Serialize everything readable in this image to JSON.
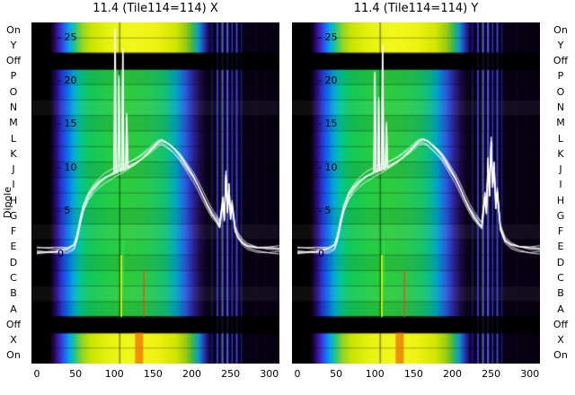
{
  "figure": {
    "bg": "#ffffff"
  },
  "panels": [
    {
      "title": "11.4 (Tile114=114) X"
    },
    {
      "title": "11.4 (Tile114=114) Y"
    }
  ],
  "axis": {
    "dipole_label": "Dipole",
    "row_labels": [
      "On",
      "Y",
      "Off",
      "P",
      "O",
      "N",
      "M",
      "L",
      "K",
      "J",
      "I",
      "H",
      "G",
      "F",
      "E",
      "D",
      "C",
      "B",
      "A",
      "Off",
      "X",
      "On"
    ],
    "x_tick_labels": [
      "0",
      "50",
      "100",
      "150",
      "200",
      "250",
      "300"
    ],
    "x_tick_values": [
      0,
      50,
      100,
      150,
      200,
      250,
      300
    ],
    "inner_left_tick_labels": [
      "- 25",
      "- 20",
      "- 15",
      "- 10",
      "- 5",
      "0"
    ],
    "inner_left_tick_values": [
      25,
      20,
      15,
      10,
      5,
      0
    ],
    "inner_right_tick_labels": [
      "25",
      "20",
      "15",
      "10",
      "5"
    ],
    "inner_right_tick_values": [
      25,
      20,
      15,
      10,
      5
    ]
  },
  "chart_data": {
    "type": "heatmap",
    "description": "Two-panel per-dipole spectrum waterfall (jet colormap) with overlaid white bandpass power curves; one panel per polarization X and Y",
    "x_range": [
      0,
      320
    ],
    "x_ticks": [
      0,
      50,
      100,
      150,
      200,
      250,
      300
    ],
    "inner_y_range": [
      0,
      26
    ],
    "inner_y_ticks": [
      0,
      5,
      10,
      15,
      20,
      25
    ],
    "row_labels": [
      "On",
      "Y",
      "Off",
      "P",
      "O",
      "N",
      "M",
      "L",
      "K",
      "J",
      "I",
      "H",
      "G",
      "F",
      "E",
      "D",
      "C",
      "B",
      "A",
      "Off",
      "X",
      "On"
    ],
    "row_kinds": [
      "bright",
      "bright",
      "off",
      "main",
      "main",
      "main",
      "main",
      "main",
      "main",
      "main",
      "main",
      "main",
      "main",
      "main",
      "main",
      "main",
      "main",
      "main",
      "main",
      "off",
      "bright",
      "bright"
    ],
    "colormaps": {
      "main": [
        [
          0,
          "#000000"
        ],
        [
          16,
          "#000000"
        ],
        [
          21,
          "#1a0533"
        ],
        [
          26,
          "#2c0e88"
        ],
        [
          32,
          "#2438d8"
        ],
        [
          39,
          "#0f6ae8"
        ],
        [
          47,
          "#00a8dc"
        ],
        [
          56,
          "#00c796"
        ],
        [
          66,
          "#12c75e"
        ],
        [
          90,
          "#22cc46"
        ],
        [
          120,
          "#2ecc3e"
        ],
        [
          150,
          "#24c854"
        ],
        [
          168,
          "#0fc07e"
        ],
        [
          180,
          "#00a6c8"
        ],
        [
          192,
          "#2b5ae0"
        ],
        [
          202,
          "#2c2398"
        ],
        [
          211,
          "#1c0b48"
        ],
        [
          219,
          "#0c0318"
        ],
        [
          240,
          "#070112"
        ],
        [
          258,
          "#0c0220"
        ],
        [
          270,
          "#090114"
        ],
        [
          320,
          "#070010"
        ]
      ],
      "bright": [
        [
          0,
          "#000000"
        ],
        [
          16,
          "#000000"
        ],
        [
          21,
          "#1c0536"
        ],
        [
          27,
          "#3a16aa"
        ],
        [
          34,
          "#2a52e8"
        ],
        [
          42,
          "#00a8f0"
        ],
        [
          50,
          "#2cc878"
        ],
        [
          58,
          "#8ed426"
        ],
        [
          70,
          "#cce400"
        ],
        [
          95,
          "#e8f410"
        ],
        [
          125,
          "#f2f81c"
        ],
        [
          155,
          "#eef312"
        ],
        [
          178,
          "#d4e600"
        ],
        [
          192,
          "#9ccc10"
        ],
        [
          201,
          "#3cb84a"
        ],
        [
          209,
          "#0b98cc"
        ],
        [
          216,
          "#2b35b0"
        ],
        [
          223,
          "#140442"
        ],
        [
          231,
          "#08021a"
        ],
        [
          320,
          "#070010"
        ]
      ]
    },
    "stripes": [
      {
        "x": 107,
        "w": 1.5,
        "color": "#000000",
        "alpha": 0.45
      },
      {
        "x": 226,
        "w": 1.2,
        "color": "#2233cc",
        "alpha": 0.55
      },
      {
        "x": 233,
        "w": 2.0,
        "color": "#3b44ee",
        "alpha": 0.85
      },
      {
        "x": 239,
        "w": 1.2,
        "color": "#e8e8ff",
        "alpha": 0.5
      },
      {
        "x": 240,
        "w": 1.5,
        "color": "#4c55ff",
        "alpha": 0.9
      },
      {
        "x": 246,
        "w": 2.2,
        "color": "#5560ff",
        "alpha": 0.9
      },
      {
        "x": 252,
        "w": 1.5,
        "color": "#3b44e0",
        "alpha": 0.85
      },
      {
        "x": 258,
        "w": 2.0,
        "color": "#4750f0",
        "alpha": 0.85
      },
      {
        "x": 264,
        "w": 1.2,
        "color": "#2a33bb",
        "alpha": 0.7
      },
      {
        "x": 283,
        "w": 1.0,
        "color": "#1a1140",
        "alpha": 0.5
      },
      {
        "x": 295,
        "w": 1.0,
        "color": "#140d33",
        "alpha": 0.4
      }
    ],
    "features": [
      {
        "x": 109,
        "w": 2.0,
        "color": "#d4f000",
        "row_start": 15,
        "row_end": 19,
        "alpha": 0.95
      },
      {
        "x": 111.5,
        "w": 1.0,
        "color": "#33ee55",
        "row_start": 14,
        "row_end": 17,
        "alpha": 0.9
      },
      {
        "x": 138,
        "w": 1.5,
        "color": "#ff4400",
        "row_start": 16,
        "row_end": 19,
        "alpha": 0.9
      },
      {
        "x": 132,
        "w": 9.0,
        "color": "#ee6600",
        "row_start": 20,
        "row_end": 22,
        "alpha": 0.7
      }
    ],
    "panels": [
      {
        "name": "X",
        "title": "11.4 (Tile114=114) X",
        "line_base": [
          [
            0,
            0.4
          ],
          [
            24,
            0.4
          ],
          [
            40,
            0.5
          ],
          [
            48,
            0.9
          ],
          [
            52,
            2.0
          ],
          [
            56,
            3.8
          ],
          [
            60,
            5.3
          ],
          [
            66,
            6.6
          ],
          [
            72,
            7.4
          ],
          [
            80,
            8.2
          ],
          [
            88,
            8.8
          ],
          [
            96,
            9.2
          ],
          [
            104,
            9.6
          ],
          [
            112,
            9.9
          ],
          [
            120,
            10.3
          ],
          [
            128,
            10.7
          ],
          [
            136,
            11.2
          ],
          [
            144,
            11.8
          ],
          [
            150,
            12.3
          ],
          [
            156,
            12.8
          ],
          [
            161,
            13.0
          ],
          [
            166,
            12.8
          ],
          [
            172,
            12.4
          ],
          [
            178,
            11.9
          ],
          [
            184,
            11.3
          ],
          [
            190,
            10.5
          ],
          [
            196,
            9.7
          ],
          [
            202,
            8.9
          ],
          [
            208,
            7.9
          ],
          [
            214,
            6.8
          ],
          [
            220,
            5.7
          ],
          [
            226,
            4.7
          ],
          [
            232,
            4.0
          ],
          [
            236,
            3.4
          ],
          [
            240,
            6.2
          ],
          [
            242,
            4.1
          ],
          [
            244,
            9.3
          ],
          [
            246,
            5.0
          ],
          [
            248,
            7.8
          ],
          [
            250,
            4.2
          ],
          [
            252,
            5.8
          ],
          [
            256,
            2.8
          ],
          [
            260,
            2.0
          ],
          [
            266,
            1.3
          ],
          [
            272,
            0.9
          ],
          [
            284,
            0.6
          ],
          [
            300,
            0.5
          ],
          [
            320,
            0.5
          ]
        ],
        "line_spikes": [
          [
            101,
            26
          ],
          [
            106,
            20.5
          ],
          [
            111,
            23.5
          ],
          [
            116,
            16
          ]
        ]
      },
      {
        "name": "Y",
        "title": "11.4 (Tile114=114) Y",
        "line_base": [
          [
            0,
            0.4
          ],
          [
            24,
            0.4
          ],
          [
            40,
            0.5
          ],
          [
            48,
            0.9
          ],
          [
            52,
            2.0
          ],
          [
            56,
            3.8
          ],
          [
            60,
            5.3
          ],
          [
            66,
            6.7
          ],
          [
            72,
            7.5
          ],
          [
            80,
            8.3
          ],
          [
            88,
            8.9
          ],
          [
            96,
            9.3
          ],
          [
            104,
            9.7
          ],
          [
            112,
            10.0
          ],
          [
            120,
            10.4
          ],
          [
            128,
            10.8
          ],
          [
            136,
            11.3
          ],
          [
            144,
            11.9
          ],
          [
            150,
            12.4
          ],
          [
            156,
            12.9
          ],
          [
            162,
            13.1
          ],
          [
            168,
            12.9
          ],
          [
            174,
            12.4
          ],
          [
            180,
            11.9
          ],
          [
            186,
            11.3
          ],
          [
            192,
            10.5
          ],
          [
            198,
            9.6
          ],
          [
            204,
            8.7
          ],
          [
            210,
            7.6
          ],
          [
            216,
            6.4
          ],
          [
            222,
            5.3
          ],
          [
            228,
            4.4
          ],
          [
            234,
            3.7
          ],
          [
            238,
            3.3
          ],
          [
            242,
            6.8
          ],
          [
            244,
            4.9
          ],
          [
            246,
            10.8
          ],
          [
            248,
            6.9
          ],
          [
            250,
            13.2
          ],
          [
            252,
            7.9
          ],
          [
            254,
            10.3
          ],
          [
            256,
            5.4
          ],
          [
            258,
            7.3
          ],
          [
            262,
            3.0
          ],
          [
            268,
            1.6
          ],
          [
            276,
            1.0
          ],
          [
            286,
            0.7
          ],
          [
            300,
            0.5
          ],
          [
            320,
            0.5
          ]
        ],
        "line_spikes": [
          [
            100,
            21
          ],
          [
            105,
            18
          ],
          [
            110,
            24
          ],
          [
            115,
            15
          ]
        ]
      }
    ]
  }
}
